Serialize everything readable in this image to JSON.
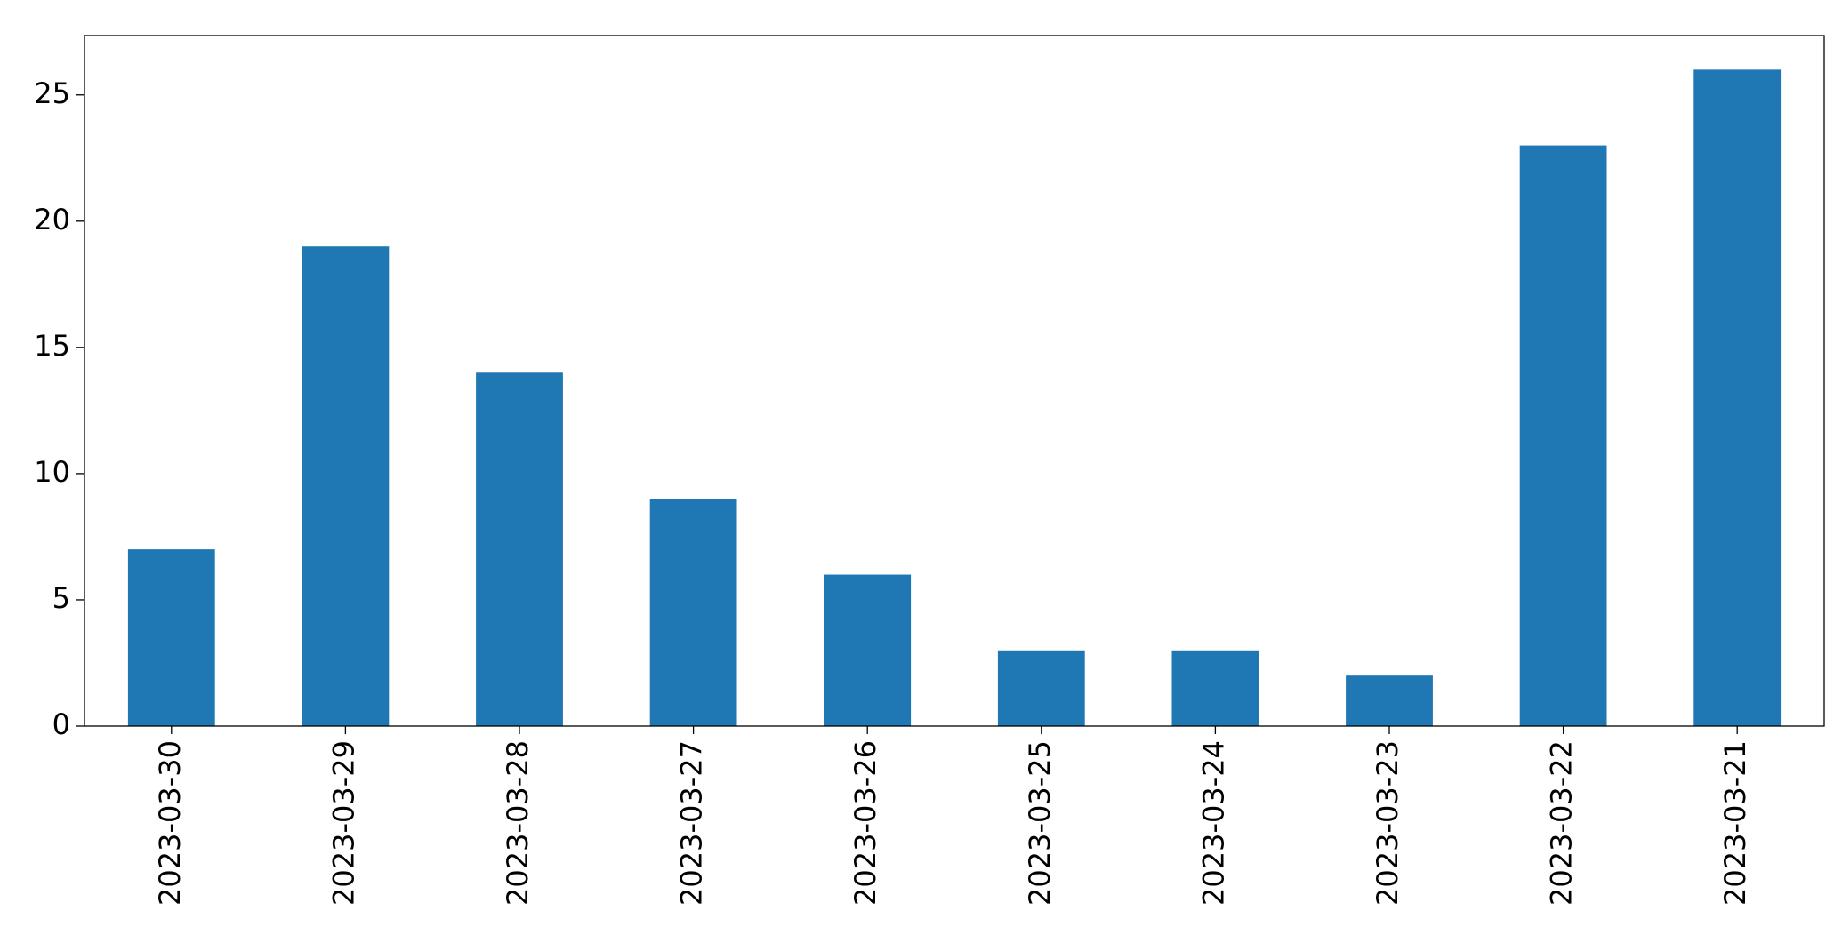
{
  "chart_data": {
    "type": "bar",
    "categories": [
      "2023-03-30",
      "2023-03-29",
      "2023-03-28",
      "2023-03-27",
      "2023-03-26",
      "2023-03-25",
      "2023-03-24",
      "2023-03-23",
      "2023-03-22",
      "2023-03-21"
    ],
    "values": [
      7,
      19,
      14,
      9,
      6,
      3,
      3,
      2,
      23,
      26
    ],
    "color": "#1f77b4",
    "ylim": [
      0,
      27.35
    ],
    "yticks": [
      0,
      5,
      10,
      15,
      20,
      25
    ],
    "grid": false
  }
}
